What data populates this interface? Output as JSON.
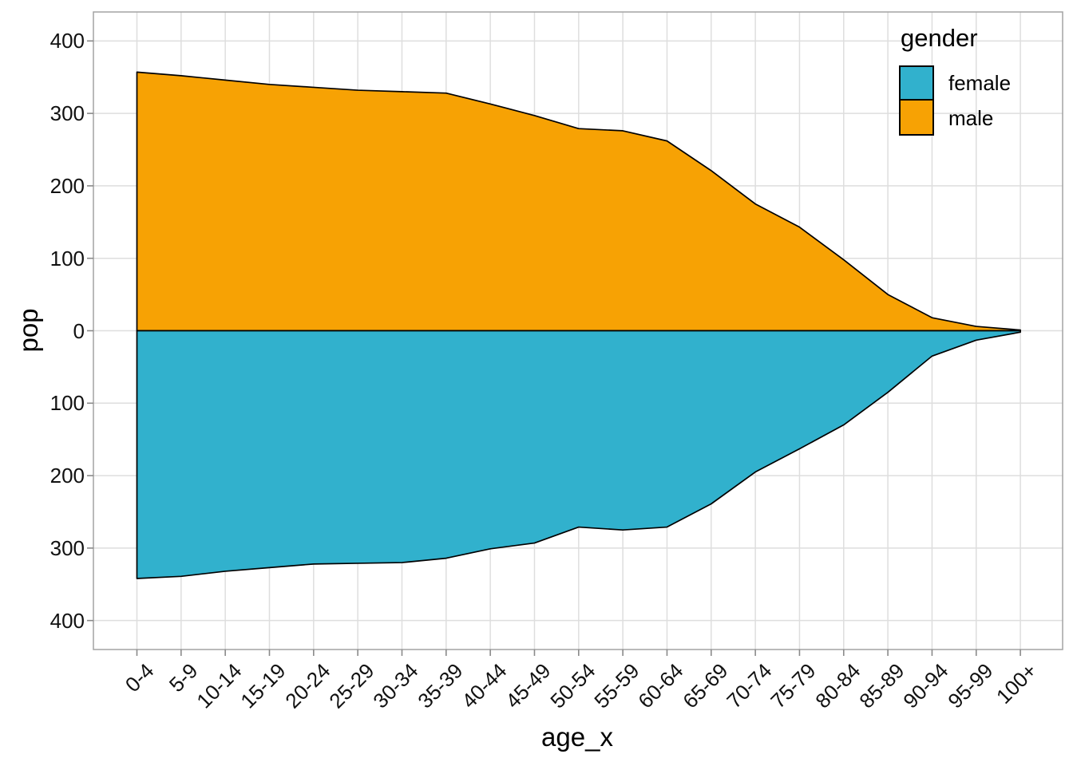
{
  "figure": {
    "y_axis": {
      "title": "pop",
      "tick_labels": [
        "400",
        "300",
        "200",
        "100",
        "0",
        "100",
        "200",
        "300",
        "400"
      ],
      "tick_values": [
        400,
        300,
        200,
        100,
        0,
        -100,
        -200,
        -300,
        -400
      ]
    },
    "x_axis": {
      "title": "age_x"
    },
    "legend": {
      "title": "gender",
      "entries": [
        {
          "label": "female",
          "color": "#31B1CD"
        },
        {
          "label": "male",
          "color": "#F7A204"
        }
      ]
    }
  },
  "chart_data": {
    "type": "area",
    "title": "",
    "xlabel": "age_x",
    "ylabel": "pop",
    "categories": [
      "0-4",
      "5-9",
      "10-14",
      "15-19",
      "20-24",
      "25-29",
      "30-34",
      "35-39",
      "40-44",
      "45-49",
      "50-54",
      "55-59",
      "60-64",
      "65-69",
      "70-74",
      "75-79",
      "80-84",
      "85-89",
      "90-94",
      "95-99",
      "100+"
    ],
    "series": [
      {
        "name": "male",
        "color": "#F7A204",
        "values": [
          357,
          352,
          346,
          340,
          336,
          332,
          330,
          328,
          313,
          297,
          279,
          276,
          262,
          221,
          175,
          143,
          98,
          50,
          18,
          6,
          1
        ]
      },
      {
        "name": "female",
        "color": "#31B1CD",
        "values": [
          -342,
          -339,
          -332,
          -327,
          -322,
          -321,
          -320,
          -314,
          -301,
          -293,
          -271,
          -275,
          -271,
          -239,
          -195,
          -163,
          -130,
          -85,
          -35,
          -13,
          -2
        ]
      }
    ],
    "ylim": [
      -440,
      440
    ],
    "y_ticks": [
      -400,
      -300,
      -200,
      -100,
      0,
      100,
      200,
      300,
      400
    ],
    "grid": true,
    "legend_position": "inside-top-right",
    "outline_color": "#000000",
    "baseline": 0,
    "colors": {
      "grid": "#DEDEDE",
      "panel_border": "#A3A3A3",
      "tick_mark": "#8A8A8A"
    }
  }
}
